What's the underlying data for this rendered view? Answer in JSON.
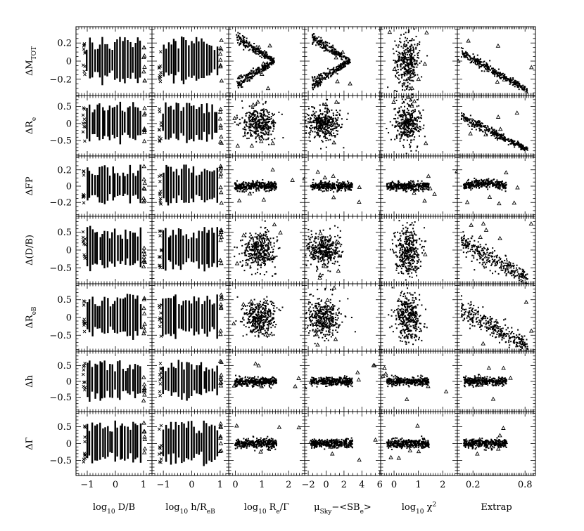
{
  "chart_data": {
    "type": "scatter",
    "layout": "grid",
    "rows": 7,
    "columns": 6,
    "grid": false,
    "x_axes": [
      {
        "key": "log_db",
        "label_parts": [
          [
            "log",
            ""
          ],
          [
            "10",
            "sub"
          ],
          [
            " D/B",
            ""
          ]
        ],
        "xlim": [
          -1.4,
          1.3
        ],
        "ticks": [
          -1,
          0,
          1
        ],
        "tick_labels": [
          "−1",
          "0",
          "1"
        ]
      },
      {
        "key": "log_h_reb",
        "label_parts": [
          [
            "log",
            ""
          ],
          [
            "10",
            "sub"
          ],
          [
            " h/R",
            ""
          ],
          [
            "eB",
            "sub"
          ]
        ],
        "xlim": [
          -1.4,
          1.3
        ],
        "ticks": [
          -1,
          0,
          1
        ],
        "tick_labels": [
          "−1",
          "0",
          "1"
        ]
      },
      {
        "key": "log_re_gamma",
        "label_parts": [
          [
            "log",
            ""
          ],
          [
            "10",
            "sub"
          ],
          [
            " R",
            ""
          ],
          [
            "e",
            "sub"
          ],
          [
            "/Γ",
            ""
          ]
        ],
        "xlim": [
          -0.25,
          2.6
        ],
        "ticks": [
          0,
          1,
          2
        ],
        "tick_labels": [
          "0",
          "1",
          "2"
        ]
      },
      {
        "key": "mu_sky",
        "label_parts": [
          [
            "μ",
            ""
          ],
          [
            "Sky",
            "sub"
          ],
          [
            "−<SB",
            ""
          ],
          [
            "e",
            "sub"
          ],
          [
            ">",
            ""
          ]
        ],
        "xlim": [
          -2.4,
          6.1
        ],
        "ticks": [
          -2,
          0,
          2,
          4,
          6
        ],
        "tick_labels": [
          "−2",
          "0",
          "2",
          "4",
          "6"
        ]
      },
      {
        "key": "log_chi2",
        "label_parts": [
          [
            "log",
            ""
          ],
          [
            "10",
            "sub"
          ],
          [
            " χ",
            ""
          ],
          [
            "2",
            "sup"
          ]
        ],
        "xlim": [
          -0.55,
          2.6
        ],
        "ticks": [
          0,
          1,
          2
        ],
        "tick_labels": [
          "0",
          "1",
          "2"
        ]
      },
      {
        "key": "extrap",
        "label_parts": [
          [
            "Extrap",
            ""
          ]
        ],
        "xlim": [
          0.02,
          0.92
        ],
        "ticks": [
          0.2,
          0.8
        ],
        "tick_labels": [
          "0.2",
          "0.8"
        ]
      }
    ],
    "y_axes": [
      {
        "key": "d_mtot",
        "label_parts": [
          [
            "ΔM",
            ""
          ],
          [
            "TOT",
            "sub"
          ]
        ],
        "ylim": [
          -0.38,
          0.38
        ],
        "ticks": [
          -0.2,
          0,
          0.2
        ],
        "tick_labels": [
          "−0.2",
          "0",
          "0.2"
        ]
      },
      {
        "key": "d_re",
        "label_parts": [
          [
            "ΔR",
            ""
          ],
          [
            "e",
            "sub"
          ]
        ],
        "ylim": [
          -0.95,
          0.82
        ],
        "ticks": [
          -0.5,
          0,
          0.5
        ],
        "tick_labels": [
          "−0.5",
          "0",
          "0.5"
        ]
      },
      {
        "key": "d_fp",
        "label_parts": [
          [
            "ΔFP",
            ""
          ]
        ],
        "ylim": [
          -0.37,
          0.37
        ],
        "ticks": [
          -0.2,
          0,
          0.2
        ],
        "tick_labels": [
          "−0.2",
          "0",
          "0.2"
        ]
      },
      {
        "key": "d_db",
        "label_parts": [
          [
            "Δ(D/B)",
            ""
          ]
        ],
        "ylim": [
          -0.95,
          0.95
        ],
        "ticks": [
          -0.5,
          0,
          0.5
        ],
        "tick_labels": [
          "−0.5",
          "0",
          "0.5"
        ]
      },
      {
        "key": "d_reb",
        "label_parts": [
          [
            "ΔR",
            ""
          ],
          [
            "eB",
            "sub"
          ]
        ],
        "ylim": [
          -0.95,
          0.95
        ],
        "ticks": [
          -0.5,
          0,
          0.5
        ],
        "tick_labels": [
          "−0.5",
          "0",
          "0.5"
        ]
      },
      {
        "key": "d_h",
        "label_parts": [
          [
            "Δh",
            ""
          ]
        ],
        "ylim": [
          -0.95,
          0.95
        ],
        "ticks": [
          -0.5,
          0,
          0.5
        ],
        "tick_labels": [
          "−0.5",
          "0",
          "0.5"
        ]
      },
      {
        "key": "d_gamma",
        "label_parts": [
          [
            "ΔΓ",
            ""
          ]
        ],
        "ylim": [
          -0.95,
          0.95
        ],
        "ticks": [
          -0.5,
          0,
          0.5
        ],
        "tick_labels": [
          "−0.5",
          "0",
          "0.5"
        ]
      }
    ],
    "marker_styles": [
      "dot",
      "cross",
      "triangle"
    ],
    "panel_patterns": [
      [
        "vbars",
        "vbars",
        "chevron",
        "chevron-wide",
        "blob",
        "diag"
      ],
      [
        "vbars",
        "vbars",
        "cluster",
        "cluster-neg",
        "blob",
        "diag"
      ],
      [
        "vbars",
        "vbars",
        "flat",
        "flat",
        "flat",
        "flat-curve"
      ],
      [
        "vbars",
        "vbars",
        "cluster",
        "cluster-neg",
        "blob",
        "diag-fan"
      ],
      [
        "vbars",
        "vbars",
        "cluster",
        "cluster-neg",
        "blob",
        "diag-fan"
      ],
      [
        "vbars",
        "vbars",
        "flat",
        "flat",
        "flat",
        "flat"
      ],
      [
        "vbars",
        "vbars",
        "flat",
        "flat",
        "flat",
        "flat"
      ]
    ],
    "point_density": "dense, several hundred simulated galaxies per panel",
    "marker_color": "#000000"
  }
}
